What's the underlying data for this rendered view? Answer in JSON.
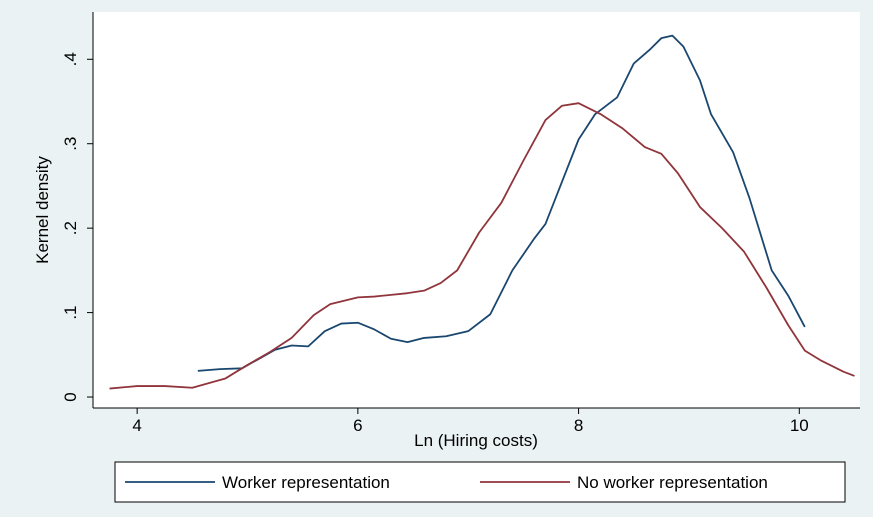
{
  "chart_data": {
    "type": "line",
    "x_label": "Ln (Hiring costs)",
    "y_label": "Kernel density",
    "xlim": [
      3.6,
      10.55
    ],
    "xticks": [
      4,
      6,
      8,
      10
    ],
    "ylim": [
      -0.013,
      0.456
    ],
    "yticks": [
      {
        "value": 0,
        "label": "0"
      },
      {
        "value": 0.1,
        "label": ".1"
      },
      {
        "value": 0.2,
        "label": ".2"
      },
      {
        "value": 0.3,
        "label": ".3"
      },
      {
        "value": 0.4,
        "label": ".4"
      }
    ],
    "grid": false,
    "legend": "bottom",
    "series": [
      {
        "name": "Worker representation",
        "color": "#1a476f",
        "x": [
          4.55,
          4.75,
          4.95,
          5.1,
          5.25,
          5.4,
          5.55,
          5.7,
          5.85,
          6.0,
          6.15,
          6.3,
          6.45,
          6.6,
          6.8,
          7.0,
          7.2,
          7.4,
          7.6,
          7.7,
          7.85,
          8.0,
          8.15,
          8.35,
          8.5,
          8.65,
          8.75,
          8.85,
          8.95,
          9.1,
          9.2,
          9.4,
          9.55,
          9.75,
          9.9,
          10.05
        ],
        "values": [
          0.031,
          0.033,
          0.034,
          0.045,
          0.056,
          0.061,
          0.06,
          0.078,
          0.087,
          0.088,
          0.08,
          0.069,
          0.065,
          0.07,
          0.072,
          0.078,
          0.098,
          0.15,
          0.188,
          0.205,
          0.255,
          0.305,
          0.335,
          0.355,
          0.395,
          0.412,
          0.425,
          0.428,
          0.415,
          0.375,
          0.335,
          0.29,
          0.235,
          0.15,
          0.12,
          0.083
        ]
      },
      {
        "name": "No worker representation",
        "color": "#90353b",
        "x": [
          3.75,
          4.0,
          4.25,
          4.5,
          4.8,
          5.0,
          5.2,
          5.4,
          5.6,
          5.75,
          6.0,
          6.15,
          6.3,
          6.45,
          6.6,
          6.75,
          6.9,
          7.1,
          7.3,
          7.5,
          7.7,
          7.85,
          8.0,
          8.2,
          8.4,
          8.6,
          8.75,
          8.9,
          9.1,
          9.3,
          9.5,
          9.7,
          9.9,
          10.05,
          10.2,
          10.4,
          10.5
        ],
        "values": [
          0.01,
          0.013,
          0.013,
          0.011,
          0.022,
          0.038,
          0.053,
          0.07,
          0.097,
          0.11,
          0.118,
          0.119,
          0.121,
          0.123,
          0.126,
          0.135,
          0.15,
          0.195,
          0.23,
          0.28,
          0.328,
          0.345,
          0.348,
          0.335,
          0.318,
          0.296,
          0.288,
          0.265,
          0.225,
          0.2,
          0.172,
          0.13,
          0.085,
          0.055,
          0.043,
          0.03,
          0.025
        ]
      }
    ]
  }
}
